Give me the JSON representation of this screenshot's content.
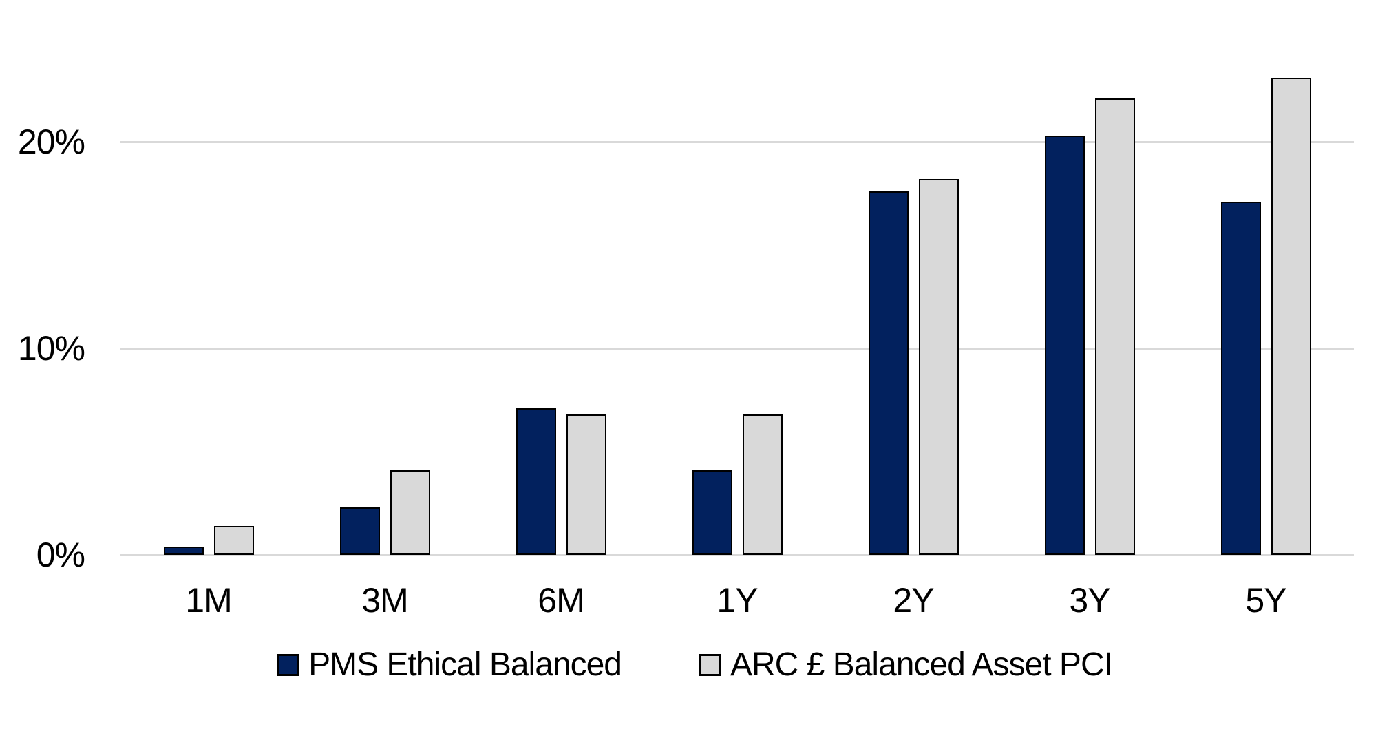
{
  "chart_data": {
    "type": "bar",
    "title": "",
    "xlabel": "",
    "ylabel": "",
    "categories": [
      "1M",
      "3M",
      "6M",
      "1Y",
      "2Y",
      "3Y",
      "5Y"
    ],
    "series": [
      {
        "name": "PMS Ethical Balanced",
        "color": "#02215E",
        "border_color": "#000000",
        "values": [
          0.4,
          2.3,
          7.1,
          4.1,
          17.6,
          20.3,
          17.1
        ]
      },
      {
        "name": "ARC £ Balanced Asset PCI",
        "color": "#D9D9D9",
        "border_color": "#000000",
        "values": [
          1.4,
          4.1,
          6.8,
          6.8,
          18.2,
          22.1,
          23.1
        ]
      }
    ],
    "value_unit": "%",
    "ylim": [
      0,
      25
    ],
    "yticks": [
      {
        "value": 0,
        "label": "0%"
      },
      {
        "value": 10,
        "label": "10%"
      },
      {
        "value": 20,
        "label": "20%"
      }
    ],
    "grid": true,
    "gridline_color": "#D9D9D9",
    "legend_position": "bottom",
    "background_color": "#FFFFFF"
  }
}
